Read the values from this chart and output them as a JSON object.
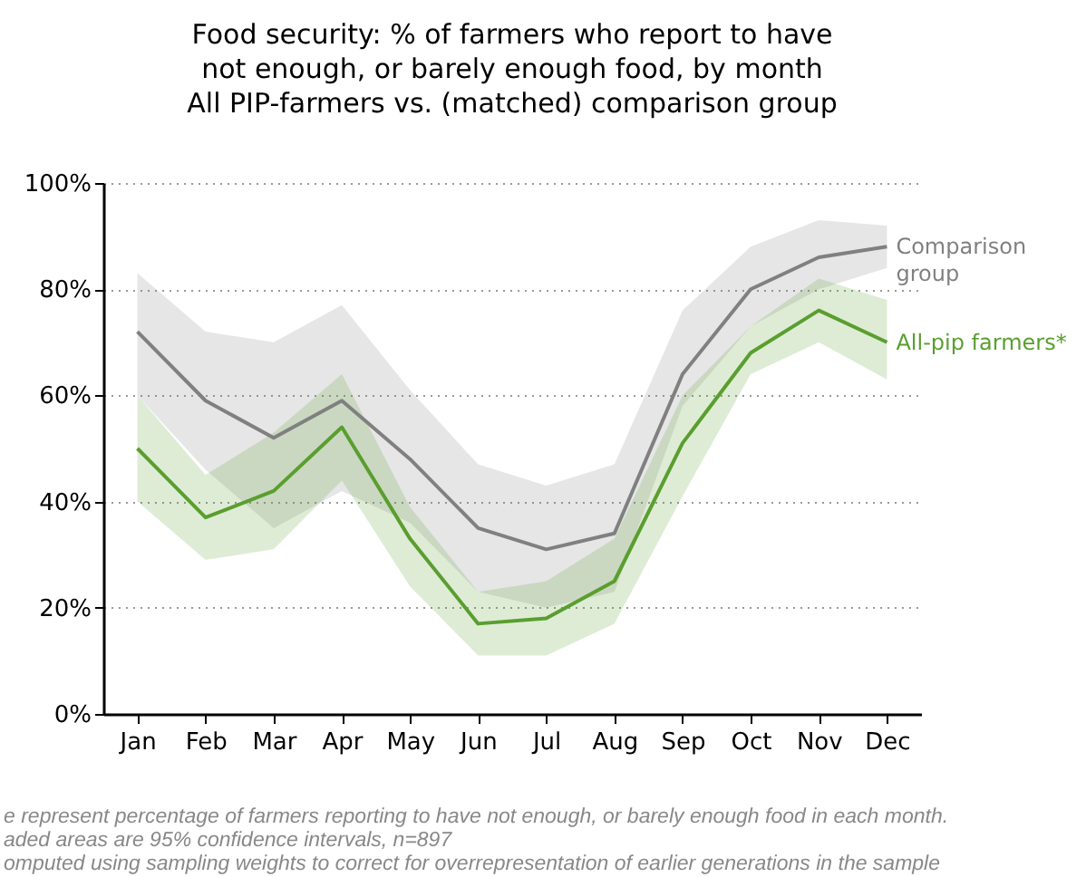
{
  "chart_data": {
    "type": "line",
    "title": "Food security: % of farmers who report to have\nnot enough, or barely enough food, by month\nAll PIP-farmers vs. (matched) comparison group",
    "categories": [
      "Jan",
      "Feb",
      "Mar",
      "Apr",
      "May",
      "Jun",
      "Jul",
      "Aug",
      "Sep",
      "Oct",
      "Nov",
      "Dec"
    ],
    "series": [
      {
        "name": "Comparison group",
        "color": "#808080",
        "values": [
          72,
          59,
          52,
          59,
          48,
          35,
          31,
          34,
          64,
          80,
          86,
          88
        ],
        "lower": [
          60,
          46,
          35,
          42,
          36,
          23,
          20,
          23,
          58,
          73,
          80,
          84
        ],
        "upper": [
          83,
          72,
          70,
          77,
          61,
          47,
          43,
          47,
          76,
          88,
          93,
          92
        ]
      },
      {
        "name": "All-pip farmers*",
        "color": "#5a9e2f",
        "values": [
          50,
          37,
          42,
          54,
          33,
          17,
          18,
          25,
          51,
          68,
          76,
          70
        ],
        "lower": [
          40,
          29,
          31,
          44,
          24,
          11,
          11,
          17,
          41,
          64,
          70,
          63
        ],
        "upper": [
          60,
          45,
          53,
          64,
          39,
          23,
          25,
          33,
          60,
          73,
          82,
          78
        ]
      }
    ],
    "ylim": [
      0,
      100
    ],
    "yticks": [
      {
        "value": 0,
        "label": "0%"
      },
      {
        "value": 20,
        "label": "20%"
      },
      {
        "value": 40,
        "label": "40%"
      },
      {
        "value": 60,
        "label": "60%"
      },
      {
        "value": 80,
        "label": "80%"
      },
      {
        "value": 100,
        "label": "100%"
      }
    ],
    "grid": "y",
    "marker": "none",
    "line_style": "solid",
    "annotations": [
      "e represent percentage of farmers reporting to have not enough, or barely enough food in each month.",
      "aded areas are 95% confidence intervals, n=897",
      "omputed using sampling weights to correct for overrepresentation of earlier generations in the sample"
    ]
  }
}
